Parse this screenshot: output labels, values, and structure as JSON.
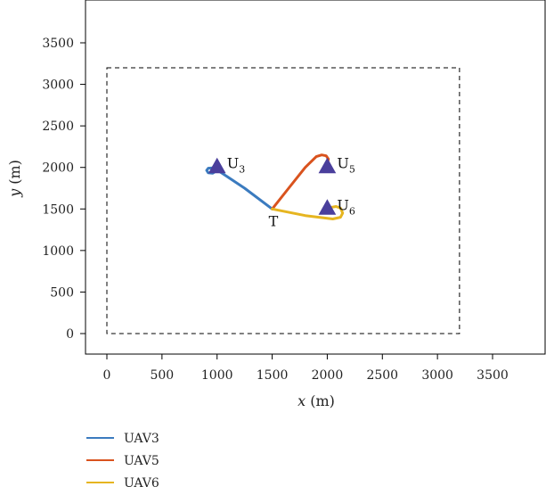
{
  "chart_data": {
    "type": "line",
    "title": "",
    "xlabel": {
      "var": "x",
      "unit": " (m)"
    },
    "ylabel": {
      "var": "y",
      "unit": " (m)"
    },
    "xlim": [
      -200,
      3900
    ],
    "ylim": [
      -250,
      3950
    ],
    "xticks": [
      0,
      500,
      1000,
      1500,
      2000,
      2500,
      3000,
      3500
    ],
    "yticks": [
      0,
      500,
      1000,
      1500,
      2000,
      2500,
      3000,
      3500
    ],
    "grid": false,
    "boundary": {
      "x": [
        0,
        3200
      ],
      "y": [
        0,
        3200
      ],
      "style": "dashed"
    },
    "series": [
      {
        "name": "UAV3",
        "color": "#3b7bbf",
        "x": [
          1500,
          1250,
          1000,
          960,
          920,
          905,
          920,
          960,
          1000
        ],
        "y": [
          1500,
          1750,
          1970,
          1995,
          1990,
          1965,
          1935,
          1930,
          1965
        ]
      },
      {
        "name": "UAV5",
        "color": "#d9531e",
        "x": [
          1500,
          1650,
          1800,
          1900,
          1950,
          1990,
          2010,
          2000
        ],
        "y": [
          1500,
          1750,
          2000,
          2130,
          2150,
          2140,
          2100,
          2040
        ]
      },
      {
        "name": "UAV6",
        "color": "#e6b520",
        "x": [
          1500,
          1800,
          2050,
          2120,
          2140,
          2120,
          2080,
          2040,
          2010
        ],
        "y": [
          1500,
          1420,
          1380,
          1400,
          1450,
          1510,
          1530,
          1520,
          1490
        ]
      }
    ],
    "markers": [
      {
        "label": "U",
        "sub": "3",
        "x": 1000,
        "y": 2000,
        "color": "#4a3f9c"
      },
      {
        "label": "U",
        "sub": "5",
        "x": 2000,
        "y": 2000,
        "color": "#4a3f9c"
      },
      {
        "label": "U",
        "sub": "6",
        "x": 2000,
        "y": 1500,
        "color": "#4a3f9c"
      }
    ],
    "target": {
      "label": "T",
      "x": 1500,
      "y": 1500
    },
    "legend": {
      "placement": "bottom-left",
      "entries": [
        "UAV3",
        "UAV5",
        "UAV6"
      ]
    }
  }
}
